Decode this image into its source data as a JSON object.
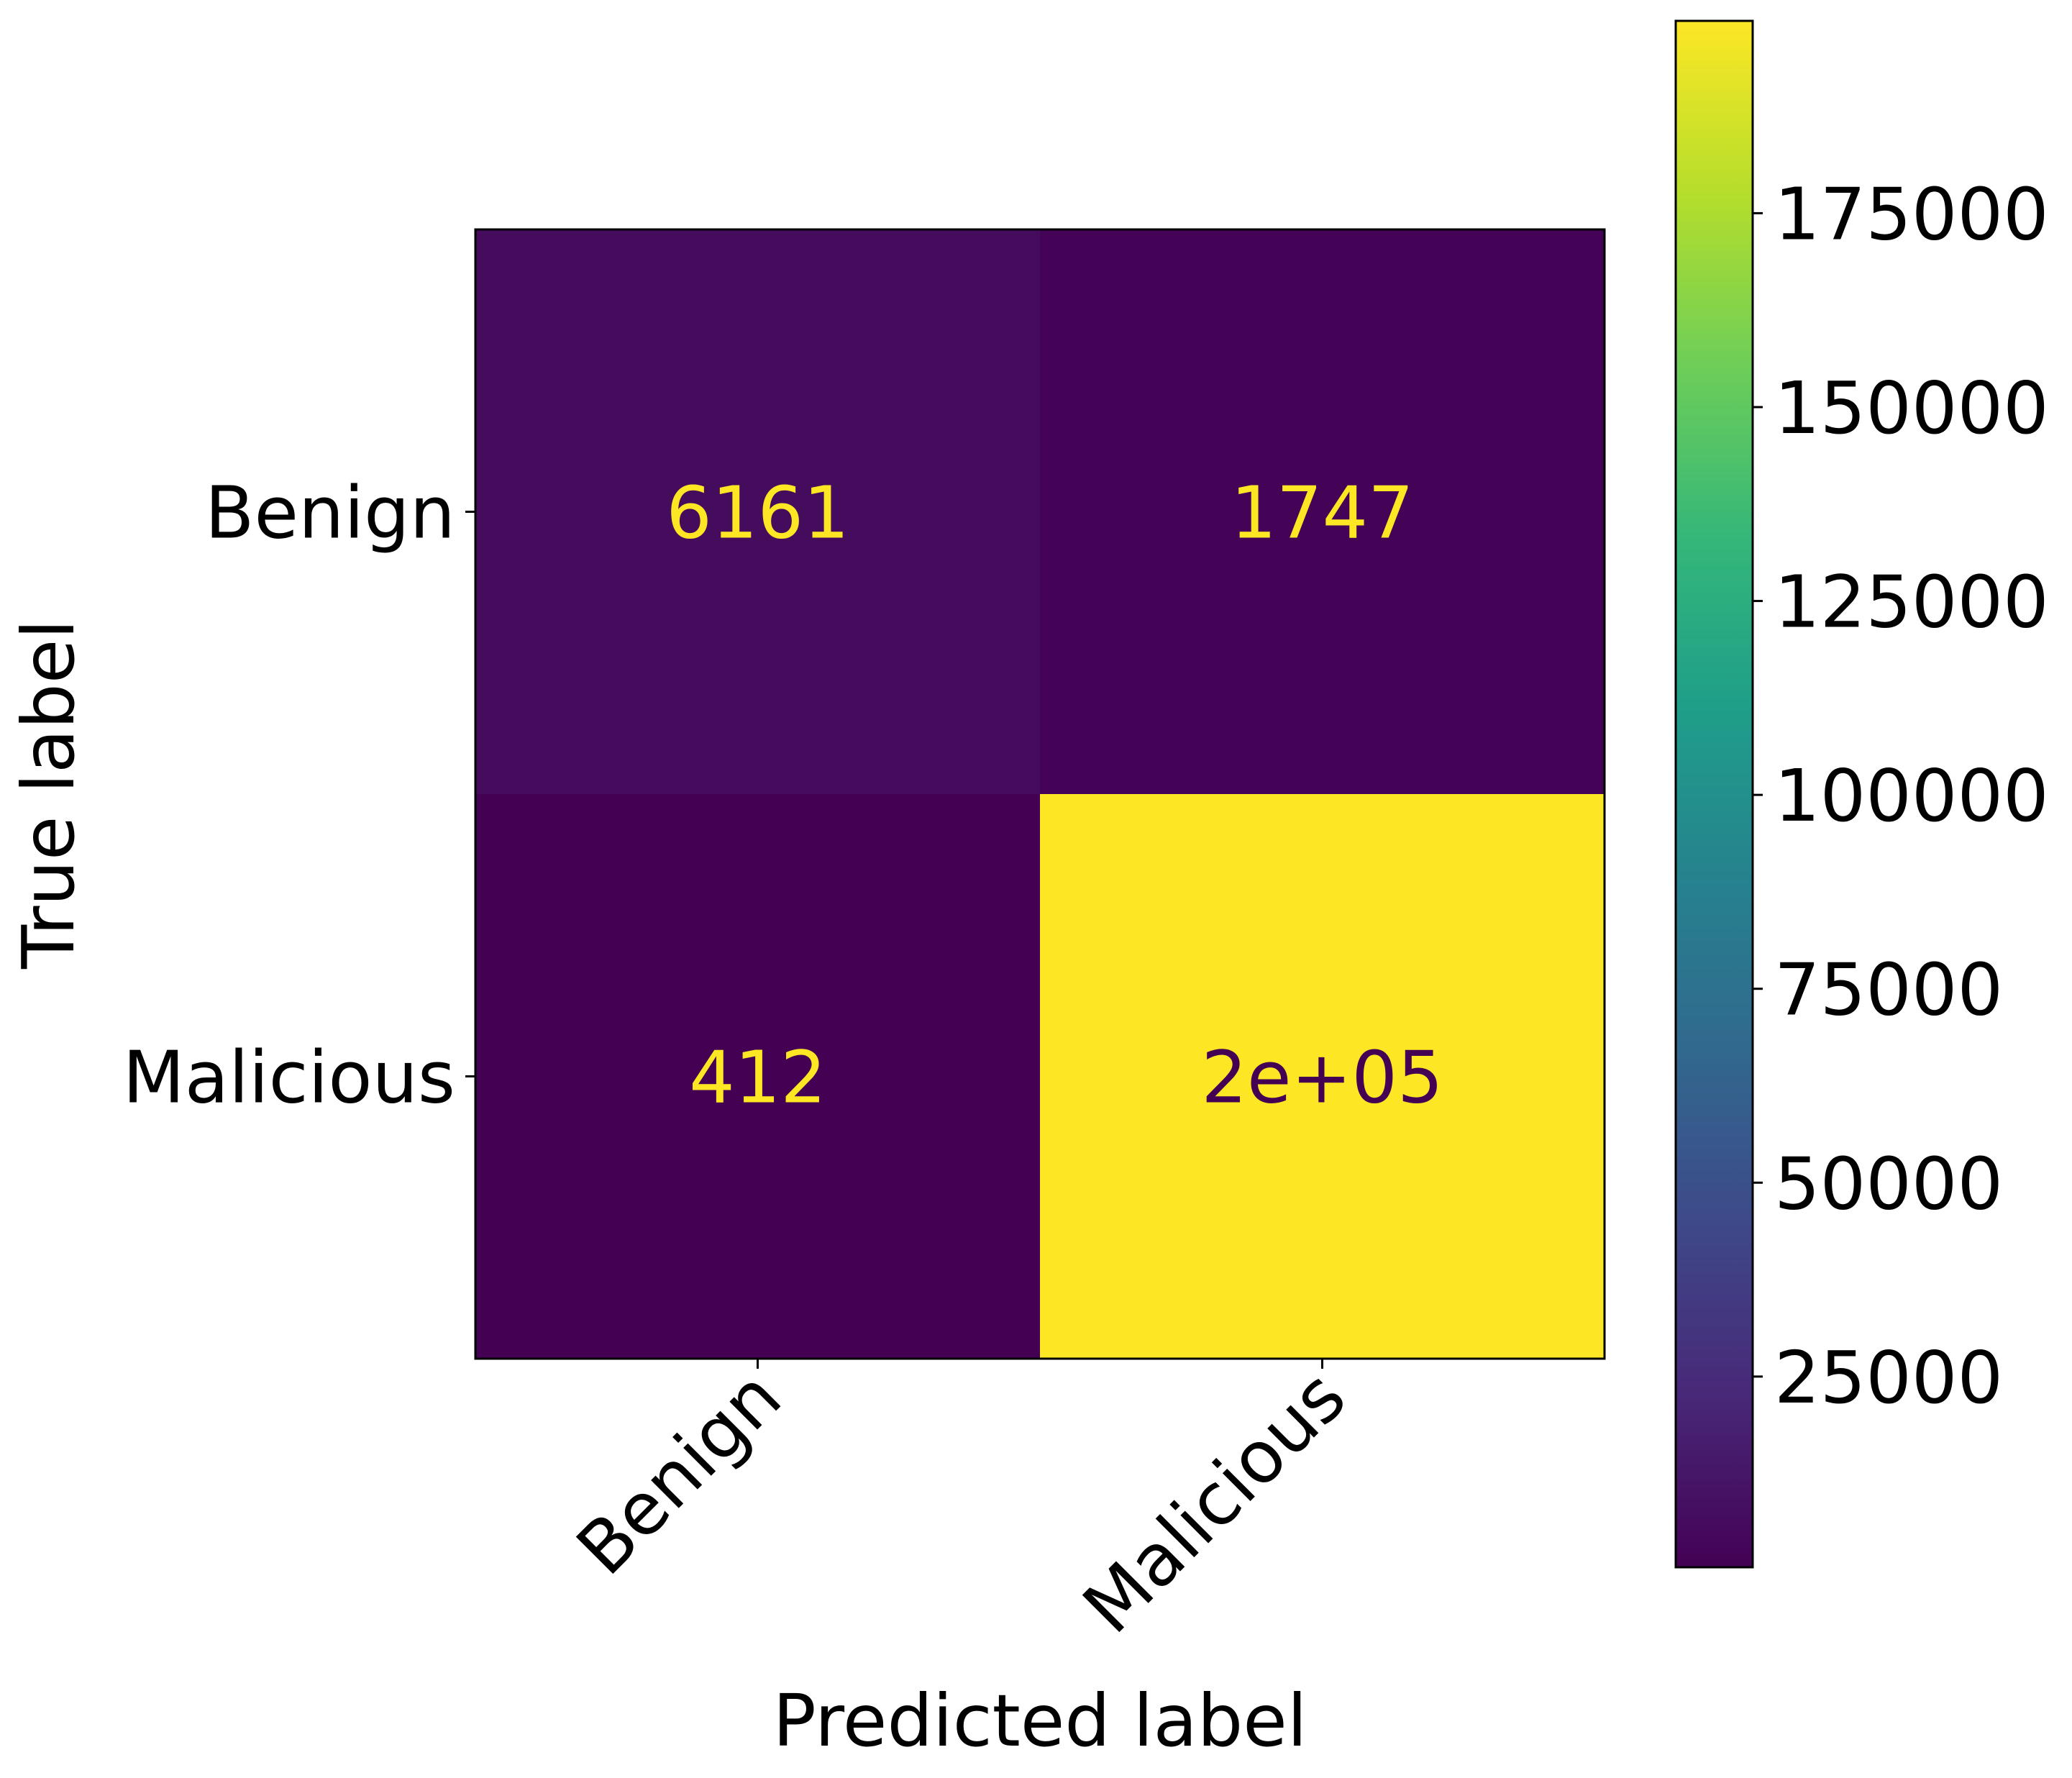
{
  "chart_data": {
    "type": "heatmap",
    "title": "",
    "xlabel": "Predicted label",
    "ylabel": "True label",
    "x_categories": [
      "Benign",
      "Malicious"
    ],
    "y_categories": [
      "Benign",
      "Malicious"
    ],
    "values": [
      [
        6161,
        1747
      ],
      [
        412,
        199800
      ]
    ],
    "cell_labels": [
      [
        "6161",
        "1747"
      ],
      [
        "412",
        "2e+05"
      ]
    ],
    "colormap": "viridis",
    "colorbar": {
      "vmin": 412,
      "vmax": 199800,
      "ticks": [
        25000,
        50000,
        75000,
        100000,
        125000,
        150000,
        175000
      ],
      "tick_labels": [
        "25000",
        "50000",
        "75000",
        "100000",
        "125000",
        "150000",
        "175000"
      ]
    },
    "text_colors": {
      "on_dark": "#fde725",
      "on_light": "#440154"
    }
  }
}
